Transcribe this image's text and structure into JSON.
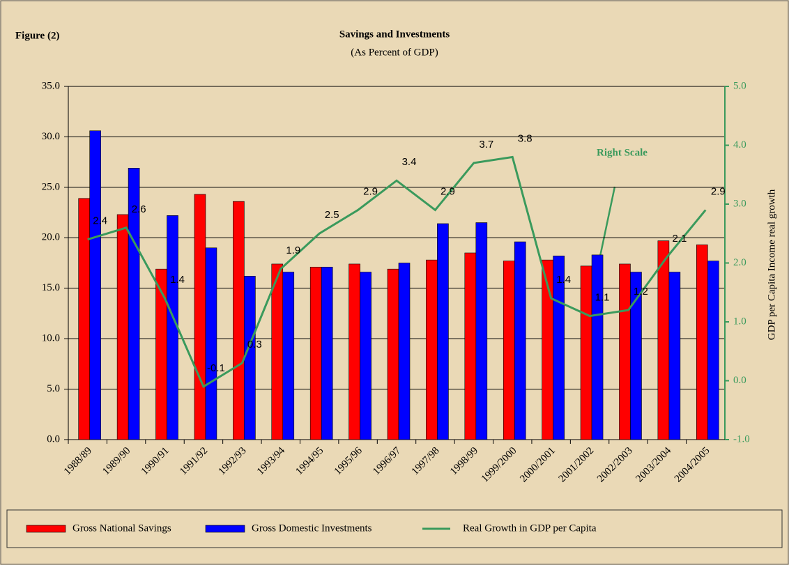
{
  "chart_data": {
    "type": "bar_line",
    "figure_label": "Figure (2)",
    "title": "Savings and Investments",
    "subtitle": "(As Percent of GDP)",
    "y2label": "GDP per Capita Income real growth",
    "annotation": "Right  Scale",
    "categories": [
      "1988/89",
      "1989/90",
      "1990/91",
      "1991/92",
      "1992/93",
      "1993/94",
      "1994/95",
      "1995/96",
      "1996/97",
      "1997/98",
      "1998/99",
      "1999/2000",
      "2000/2001",
      "2001/2002",
      "2002/2003",
      "2003/2004",
      "2004/2005"
    ],
    "series": [
      {
        "name": "Gross National Savings",
        "color": "#ff0000",
        "type": "bar",
        "values": [
          23.9,
          22.3,
          16.9,
          24.3,
          23.6,
          17.4,
          17.1,
          17.4,
          16.9,
          17.8,
          18.5,
          17.7,
          17.8,
          17.2,
          17.4,
          19.7,
          19.3
        ]
      },
      {
        "name": "Gross Domestic Investments",
        "color": "#0000ff",
        "type": "bar",
        "values": [
          30.6,
          26.9,
          22.2,
          19.0,
          16.2,
          16.6,
          17.1,
          16.6,
          17.5,
          21.4,
          21.5,
          19.6,
          18.2,
          18.3,
          16.6,
          16.6,
          17.7
        ]
      },
      {
        "name": "Real Growth in GDP per Capita",
        "color": "#3a9a5c",
        "type": "line",
        "axis": "y2",
        "values": [
          2.4,
          2.6,
          1.4,
          -0.1,
          0.3,
          1.9,
          2.5,
          2.9,
          3.4,
          2.9,
          3.7,
          3.8,
          1.4,
          1.1,
          1.2,
          2.1,
          2.9
        ]
      }
    ],
    "ylim": [
      0,
      35
    ],
    "yticks": [
      {
        "value": 0,
        "label": "0.0"
      },
      {
        "value": 5,
        "label": "5.0"
      },
      {
        "value": 10,
        "label": "10.0"
      },
      {
        "value": 15,
        "label": "15.0"
      },
      {
        "value": 20,
        "label": "20.0"
      },
      {
        "value": 25,
        "label": "25.0"
      },
      {
        "value": 30,
        "label": "30.0"
      },
      {
        "value": 35,
        "label": "35.0"
      }
    ],
    "y2lim": [
      -1,
      5
    ],
    "y2ticks": [
      {
        "value": -1,
        "label": "-1.0"
      },
      {
        "value": 0,
        "label": "0.0"
      },
      {
        "value": 1,
        "label": "1.0"
      },
      {
        "value": 2,
        "label": "2.0"
      },
      {
        "value": 3,
        "label": "3.0"
      },
      {
        "value": 4,
        "label": "4.0"
      },
      {
        "value": 5,
        "label": "5.0"
      }
    ],
    "grid": true,
    "y2color": "#3a9a5c",
    "legend": "bottom"
  }
}
